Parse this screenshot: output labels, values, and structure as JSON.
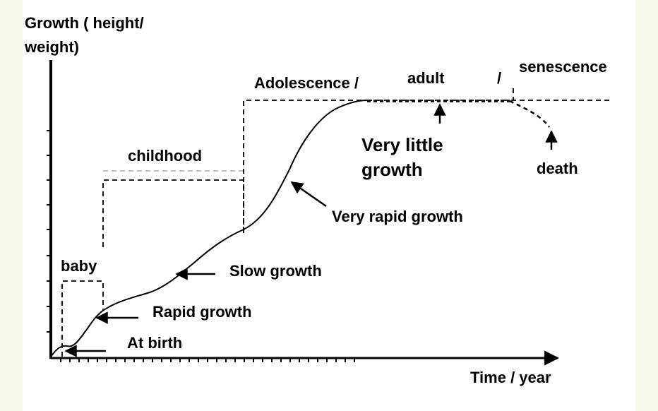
{
  "yaxis_label_line1": "Growth ( height/",
  "yaxis_label_line2": "weight)",
  "xaxis_label": "Time / year",
  "stages": {
    "baby": "baby",
    "childhood": "childhood",
    "adolescence": "Adolescence  /",
    "adult": "adult",
    "slash2": "/",
    "senescence": "senescence"
  },
  "annotations": {
    "at_birth": "At birth",
    "rapid_growth": "Rapid growth",
    "slow_growth": "Slow growth",
    "very_rapid_growth": "Very rapid growth",
    "very_little_growth_line1": "Very little",
    "very_little_growth_line2": "growth",
    "death": "death"
  },
  "colors": {
    "ink": "#000000",
    "background": "#f6f8ec",
    "panel": "#ffffff"
  }
}
